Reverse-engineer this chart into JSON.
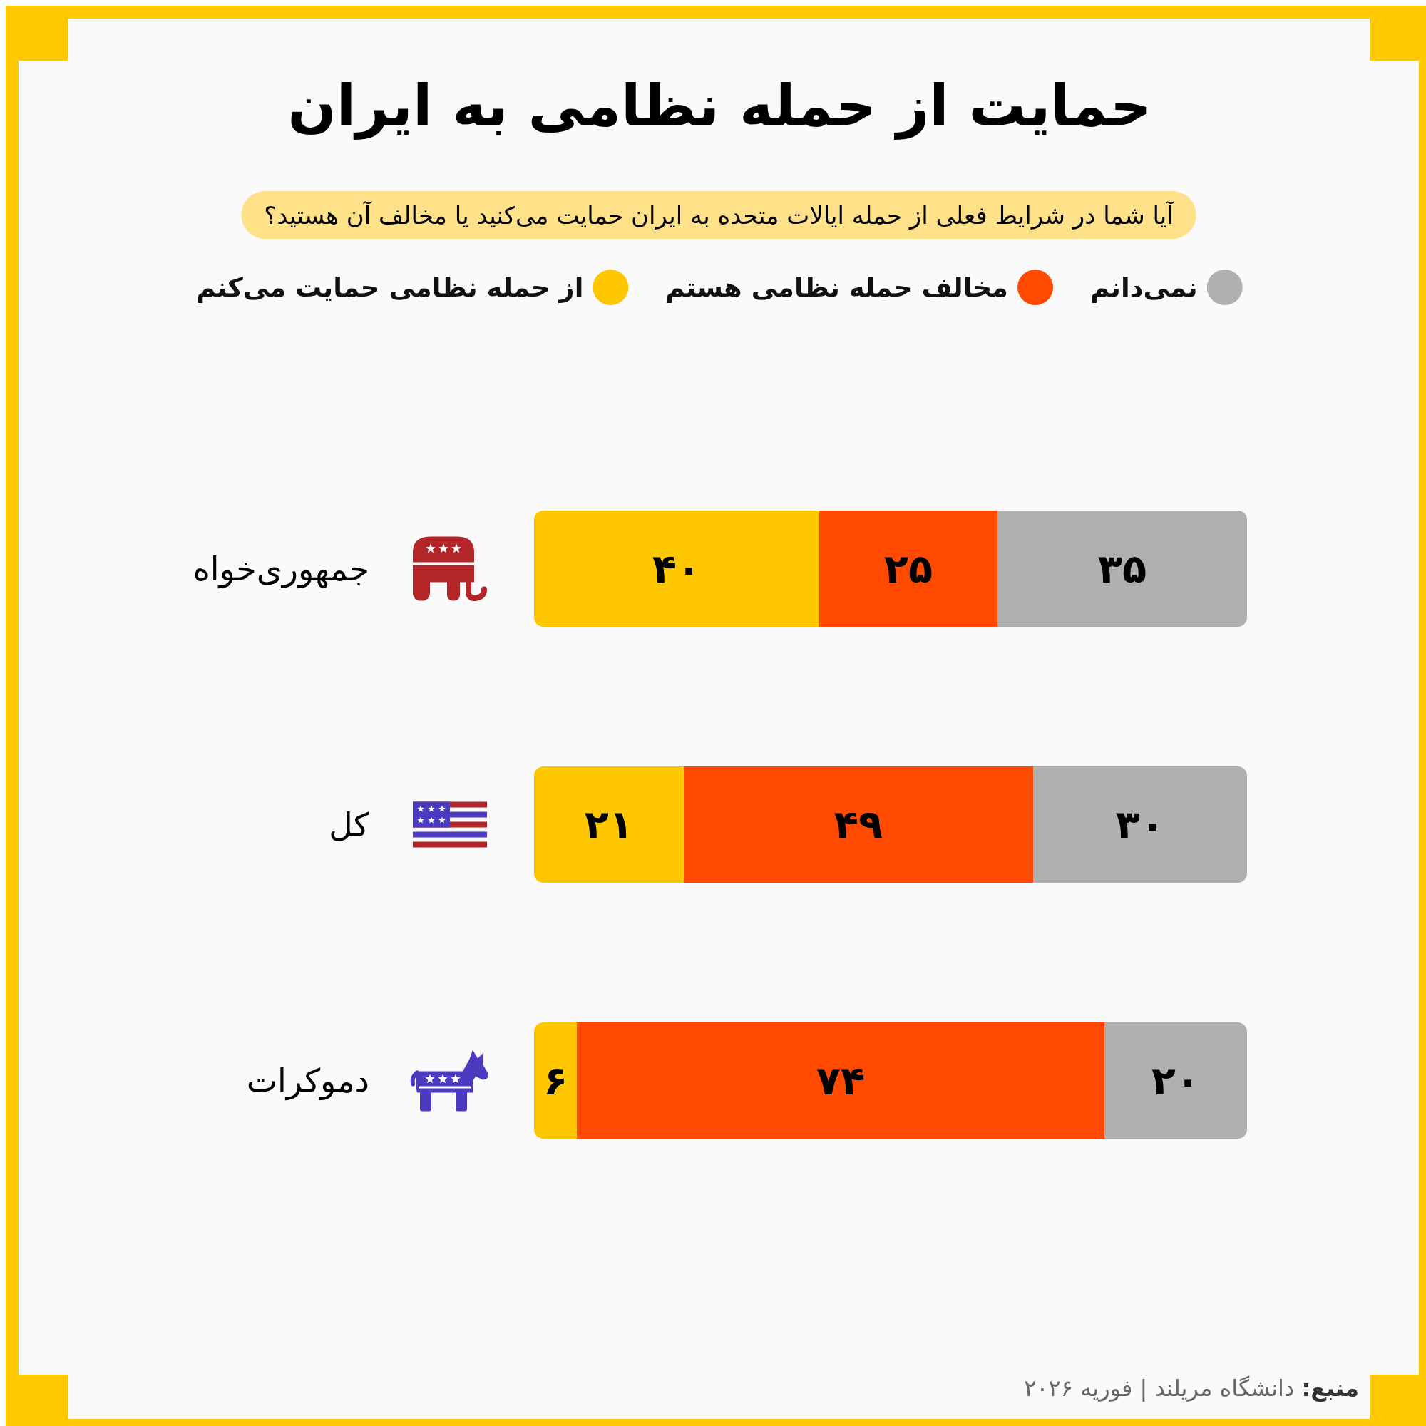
{
  "chart_data": {
    "type": "bar",
    "orientation": "horizontal",
    "stacked": true,
    "title": "حمایت از حمله نظامی به ایران",
    "subtitle": "آیا شما در شرایط فعلی از حمله ایالات متحده به ایران حمایت می‌کنید یا مخالف آن هستید؟",
    "categories": [
      "جمهوری‌خواه",
      "کل",
      "دموکرات"
    ],
    "series": [
      {
        "name": "از حمله نظامی حمایت می‌کنم",
        "color": "#ffc700",
        "values": [
          40,
          21,
          6
        ],
        "value_labels": [
          "۴۰",
          "۲۱",
          "۶"
        ]
      },
      {
        "name": "مخالف حمله نظامی هستم",
        "color": "#ff4a00",
        "values": [
          25,
          49,
          74
        ],
        "value_labels": [
          "۲۵",
          "۴۹",
          "۷۴"
        ]
      },
      {
        "name": "نمی‌دانم",
        "color": "#b0b0b0",
        "values": [
          35,
          30,
          20
        ],
        "value_labels": [
          "۳۵",
          "۳۰",
          "۲۰"
        ]
      }
    ],
    "xlim": [
      0,
      100
    ],
    "tick_labels": "y",
    "legend": "top",
    "annotations": [
      "منبع: دانشگاه مریلند | فوریه ۲۰۲۶"
    ]
  }
}
